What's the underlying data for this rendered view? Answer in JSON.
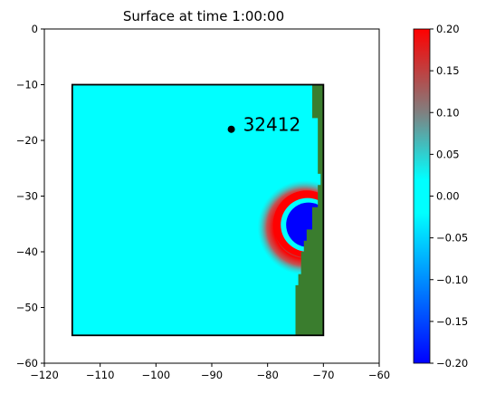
{
  "chart_data": {
    "type": "heatmap",
    "title": "Surface at time 1:00:00",
    "xlabel": "",
    "ylabel": "",
    "xlim": [
      -120,
      -60
    ],
    "ylim": [
      -60,
      0
    ],
    "xticks": [
      -120,
      -110,
      -100,
      -90,
      -80,
      -70,
      -60
    ],
    "yticks": [
      0,
      -10,
      -20,
      -30,
      -40,
      -50,
      -60
    ],
    "grid": false,
    "domain_box": {
      "x": [
        -115,
        -70
      ],
      "y": [
        -55,
        -10
      ]
    },
    "background_value": 0.0,
    "land_color": "#3a7d2e",
    "land_coast_longitude_by_latitude": [
      [
        -10,
        -72
      ],
      [
        -12,
        -72
      ],
      [
        -14,
        -72
      ],
      [
        -16,
        -71
      ],
      [
        -18,
        -71
      ],
      [
        -20,
        -71
      ],
      [
        -22,
        -71
      ],
      [
        -24,
        -71
      ],
      [
        -26,
        -70.5
      ],
      [
        -28,
        -71
      ],
      [
        -30,
        -71
      ],
      [
        -32,
        -72
      ],
      [
        -34,
        -72
      ],
      [
        -36,
        -73
      ],
      [
        -38,
        -73.5
      ],
      [
        -40,
        -74
      ],
      [
        -42,
        -74
      ],
      [
        -44,
        -74.5
      ],
      [
        -46,
        -75
      ],
      [
        -48,
        -75
      ],
      [
        -50,
        -75
      ],
      [
        -52,
        -75
      ],
      [
        -54,
        -75
      ],
      [
        -55,
        -75
      ]
    ],
    "wave_feature": {
      "description_values": "leading crest ring and trough core",
      "center": [
        -73,
        -35
      ],
      "crest_value": 0.2,
      "trough_value": -0.2,
      "crest_radius": 6,
      "trough_radius": 4
    },
    "gauge": {
      "label": "32412",
      "x": -86.5,
      "y": -18
    },
    "colorbar": {
      "min": -0.2,
      "max": 0.2,
      "ticks": [
        "0.20",
        "0.15",
        "0.10",
        "0.05",
        "0.00",
        "−0.05",
        "−0.10",
        "−0.15",
        "−0.20"
      ],
      "colors": [
        "#0000ff",
        "#00ffff",
        "#00ffff",
        "#808080",
        "#ff0000"
      ],
      "stops": [
        0,
        0.45,
        0.55,
        0.75,
        1
      ]
    }
  }
}
